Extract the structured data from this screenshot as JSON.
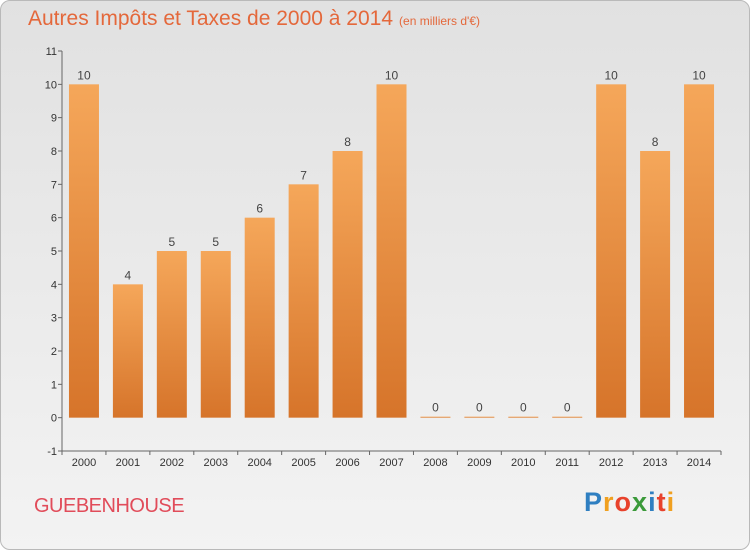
{
  "header": {
    "title": "Autres Impôts et Taxes de 2000 à 2014",
    "unit": "(en milliers d'€)"
  },
  "footer": {
    "commune": "GUEBENHOUSE",
    "logo_letters": [
      "P",
      "r",
      "o",
      "x",
      "i",
      "t",
      "i"
    ],
    "logo_colors": [
      "#2f7fc1",
      "#f0a020",
      "#e8422c",
      "#3b9a3a",
      "#2f7fc1",
      "#e8422c",
      "#f0a020"
    ]
  },
  "colors": {
    "bar_top": "#f5a75a",
    "bar_bottom": "#d6742a",
    "title": "#e4683b",
    "commune": "#e14c5a"
  },
  "chart_data": {
    "type": "bar",
    "title": "Autres Impôts et Taxes de 2000 à 2014",
    "subtitle": "(en milliers d'€)",
    "xlabel": "",
    "ylabel": "",
    "categories": [
      "2000",
      "2001",
      "2002",
      "2003",
      "2004",
      "2005",
      "2006",
      "2007",
      "2008",
      "2009",
      "2010",
      "2011",
      "2012",
      "2013",
      "2014"
    ],
    "values": [
      10,
      4,
      5,
      5,
      6,
      7,
      8,
      10,
      0,
      0,
      0,
      0,
      10,
      8,
      10
    ],
    "ylim": [
      -1,
      11
    ],
    "yticks": [
      "-1",
      "0",
      "1",
      "2",
      "3",
      "4",
      "5",
      "6",
      "7",
      "8",
      "9",
      "10",
      "11"
    ],
    "grid": false,
    "legend": "none"
  }
}
